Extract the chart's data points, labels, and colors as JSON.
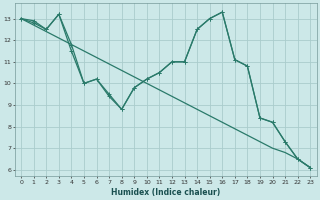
{
  "xlabel": "Humidex (Indice chaleur)",
  "bg_color": "#cce8e8",
  "grid_color": "#aacccc",
  "line_color": "#2a7a6a",
  "xlim": [
    -0.5,
    23.5
  ],
  "ylim": [
    5.7,
    13.7
  ],
  "xticks": [
    0,
    1,
    2,
    3,
    4,
    5,
    6,
    7,
    8,
    9,
    10,
    11,
    12,
    13,
    14,
    15,
    16,
    17,
    18,
    19,
    20,
    21,
    22,
    23
  ],
  "yticks": [
    6,
    7,
    8,
    9,
    10,
    11,
    12,
    13
  ],
  "line1_x": [
    0,
    1,
    2,
    3,
    4,
    5,
    6,
    7,
    8,
    9,
    10,
    11,
    12,
    13,
    14,
    15,
    16,
    17,
    18,
    19,
    20,
    21,
    22,
    23
  ],
  "line1_y": [
    13.0,
    12.9,
    12.5,
    13.2,
    11.5,
    10.0,
    10.2,
    9.5,
    8.8,
    9.8,
    10.2,
    10.5,
    11.0,
    11.0,
    12.5,
    13.0,
    13.3,
    11.1,
    10.8,
    8.4,
    8.2,
    7.3,
    6.5,
    6.1
  ],
  "line2_x": [
    0,
    1,
    2,
    3,
    4,
    5,
    6,
    7,
    8,
    9,
    10,
    11,
    12,
    13,
    14,
    15,
    16,
    17,
    18,
    19,
    20,
    21,
    22,
    23
  ],
  "line2_y": [
    13.0,
    12.8,
    12.5,
    13.2,
    11.8,
    10.0,
    10.2,
    9.4,
    8.8,
    9.8,
    10.2,
    10.5,
    11.0,
    11.0,
    12.5,
    13.0,
    13.3,
    11.1,
    10.8,
    8.4,
    8.2,
    7.3,
    6.5,
    6.1
  ],
  "line3_x": [
    0,
    1,
    2,
    3,
    4,
    5,
    6,
    7,
    8,
    9,
    10,
    11,
    12,
    13,
    14,
    15,
    16,
    17,
    18,
    19,
    20,
    21,
    22,
    23
  ],
  "line3_y": [
    13.0,
    12.7,
    12.4,
    12.1,
    11.8,
    11.5,
    11.2,
    10.9,
    10.6,
    10.3,
    10.0,
    9.7,
    9.4,
    9.1,
    8.8,
    8.5,
    8.2,
    7.9,
    7.6,
    7.3,
    7.0,
    6.8,
    6.5,
    6.1
  ]
}
